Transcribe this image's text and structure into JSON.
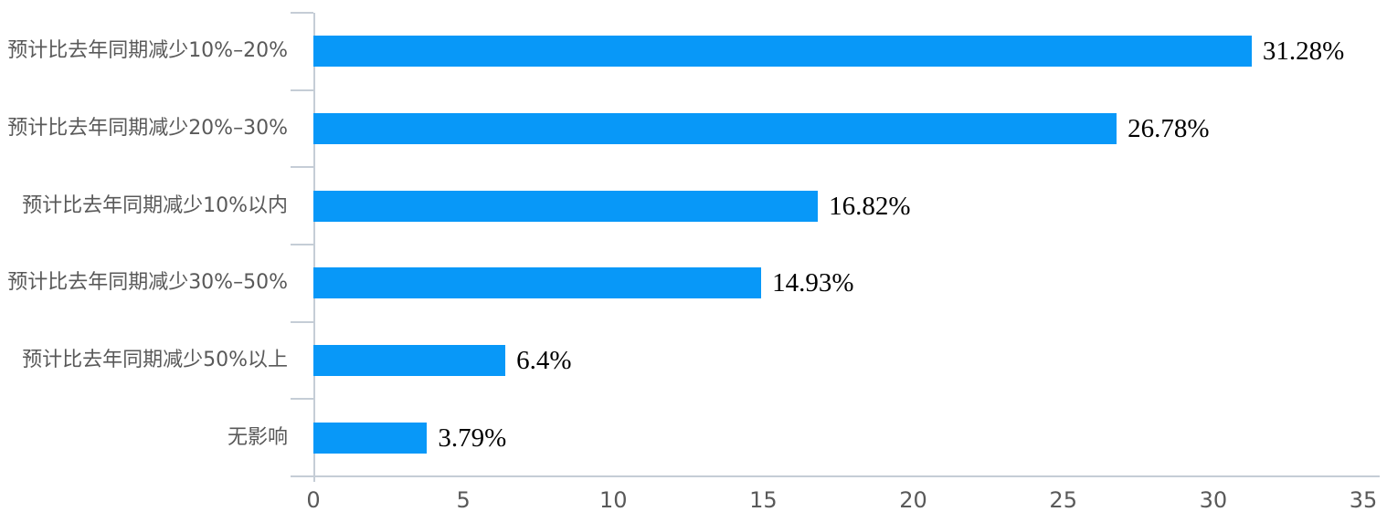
{
  "chart_data": {
    "type": "bar",
    "orientation": "horizontal",
    "title": "",
    "xlabel": "",
    "ylabel": "",
    "categories": [
      "预计比去年同期减少10%–20%",
      "预计比去年同期减少20%–30%",
      "预计比去年同期减少10%以内",
      "预计比去年同期减少30%–50%",
      "预计比去年同期减少50%以上",
      "无影响"
    ],
    "values": [
      31.28,
      26.78,
      16.82,
      14.93,
      6.4,
      3.79
    ],
    "value_labels": [
      "31.28%",
      "26.78%",
      "16.82%",
      "14.93%",
      "6.4%",
      "3.79%"
    ],
    "x_ticks": [
      "0",
      "5",
      "10",
      "15",
      "20",
      "25",
      "30",
      "35"
    ],
    "x_tick_values": [
      0,
      5,
      10,
      15,
      20,
      25,
      30,
      35
    ],
    "xlim": [
      0,
      35
    ],
    "grid": false,
    "legend": "none"
  },
  "colors": {
    "bar": "#0898f8",
    "axis": "#c5cdd6",
    "category_text": "#595959",
    "tick_text": "#595959",
    "value_text": "#000000",
    "background": "#ffffff"
  }
}
